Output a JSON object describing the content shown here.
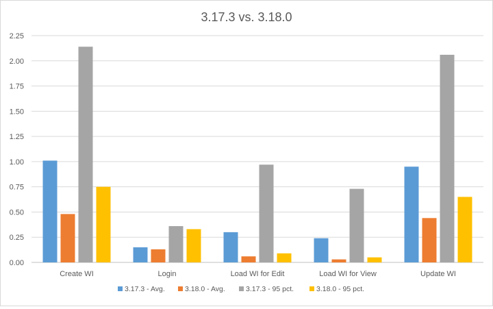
{
  "chart_data": {
    "type": "bar",
    "title": "3.17.3 vs. 3.18.0",
    "xlabel": "",
    "ylabel": "",
    "categories": [
      "Create WI",
      "Login",
      "Load WI for Edit",
      "Load WI for View",
      "Update WI"
    ],
    "series": [
      {
        "name": "3.17.3 - Avg.",
        "color": "#5b9bd5",
        "values": [
          1.01,
          0.15,
          0.3,
          0.24,
          0.95
        ]
      },
      {
        "name": "3.18.0 - Avg.",
        "color": "#ed7d31",
        "values": [
          0.48,
          0.13,
          0.06,
          0.03,
          0.44
        ]
      },
      {
        "name": "3.17.3 - 95 pct.",
        "color": "#a5a5a5",
        "values": [
          2.14,
          0.36,
          0.97,
          0.73,
          2.06
        ]
      },
      {
        "name": "3.18.0 - 95 pct.",
        "color": "#ffc000",
        "values": [
          0.75,
          0.33,
          0.09,
          0.05,
          0.65
        ]
      }
    ],
    "ylim": [
      0,
      2.25
    ],
    "yticks": [
      "0.00",
      "0.25",
      "0.50",
      "0.75",
      "1.00",
      "1.25",
      "1.50",
      "1.75",
      "2.00",
      "2.25"
    ],
    "grid": true,
    "legend_position": "bottom"
  }
}
